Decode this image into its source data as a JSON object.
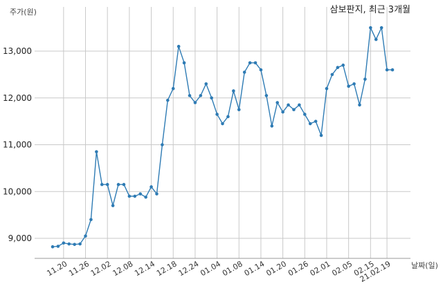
{
  "chart_data": {
    "type": "line",
    "title": "삼보판지, 최근 3개월",
    "ylabel": "주가(원)",
    "xlabel": "날짜(일)",
    "ylim": [
      8550,
      13600
    ],
    "yticks": [
      9000,
      10000,
      11000,
      12000,
      13000
    ],
    "ytick_labels": [
      "9,000",
      "10,000",
      "11,000",
      "12,000",
      "13,000"
    ],
    "xticks": [
      {
        "index": 2,
        "label": "11.20"
      },
      {
        "index": 6,
        "label": "11.26"
      },
      {
        "index": 10,
        "label": "12.02"
      },
      {
        "index": 14,
        "label": "12.08"
      },
      {
        "index": 18,
        "label": "12.14"
      },
      {
        "index": 22,
        "label": "12.18"
      },
      {
        "index": 26,
        "label": "12.24"
      },
      {
        "index": 30,
        "label": "01.04"
      },
      {
        "index": 34,
        "label": "01.08"
      },
      {
        "index": 38,
        "label": "01.14"
      },
      {
        "index": 42,
        "label": "01.20"
      },
      {
        "index": 46,
        "label": "01.26"
      },
      {
        "index": 50,
        "label": "02.01"
      },
      {
        "index": 54,
        "label": "02.05"
      },
      {
        "index": 58,
        "label": "02.15"
      },
      {
        "index": 61,
        "label": "21.02.19"
      }
    ],
    "grid": true,
    "series_color": "#2e7bb4",
    "values": [
      8820,
      8830,
      8900,
      8880,
      8870,
      8880,
      9050,
      9400,
      10850,
      10150,
      10150,
      9700,
      10150,
      10150,
      9900,
      9900,
      9950,
      9880,
      10100,
      9950,
      11000,
      11950,
      12200,
      13100,
      12750,
      12050,
      11900,
      12050,
      12300,
      12000,
      11650,
      11450,
      11600,
      12150,
      11750,
      12550,
      12750,
      12750,
      12600,
      12050,
      11400,
      11900,
      11700,
      11850,
      11750,
      11850,
      11650,
      11450,
      11500,
      11200,
      12200,
      12500,
      12650,
      12700,
      12250,
      12300,
      11850,
      12400,
      13500,
      13250,
      13500,
      12600,
      12600
    ]
  }
}
